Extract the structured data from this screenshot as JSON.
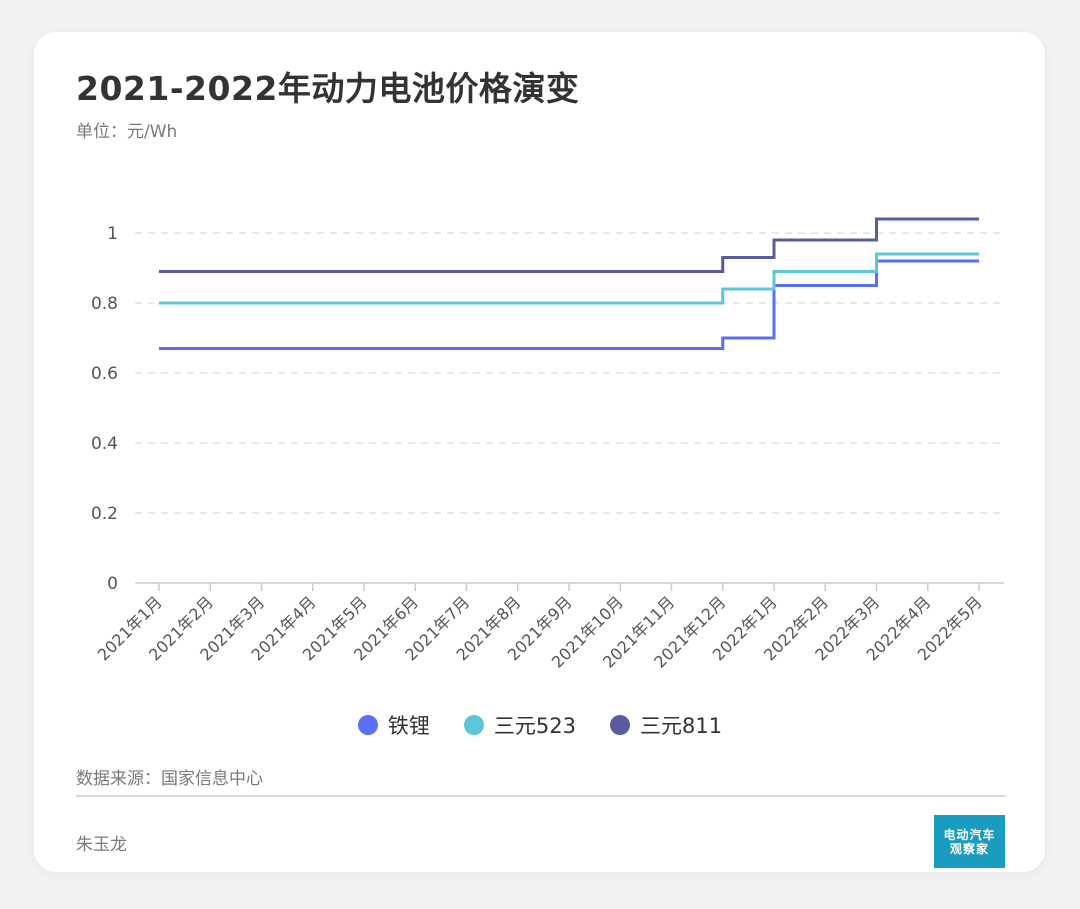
{
  "header": {
    "title": "2021-2022年动力电池价格演变",
    "unit": "单位：元/Wh"
  },
  "footer": {
    "source": "数据来源：国家信息中心",
    "author": "朱玉龙",
    "logo_line1": "电动汽车",
    "logo_line2": "观察家"
  },
  "legend": {
    "items": [
      {
        "label": "铁锂",
        "color": "#5b6ff5"
      },
      {
        "label": "三元523",
        "color": "#5ec6d8"
      },
      {
        "label": "三元811",
        "color": "#595ca0"
      }
    ]
  },
  "chart_data": {
    "type": "line",
    "step": "post",
    "categories": [
      "2021年1月",
      "2021年2月",
      "2021年3月",
      "2021年4月",
      "2021年5月",
      "2021年6月",
      "2021年7月",
      "2021年8月",
      "2021年9月",
      "2021年10月",
      "2021年11月",
      "2021年12月",
      "2022年1月",
      "2022年2月",
      "2022年3月",
      "2022年4月",
      "2022年5月"
    ],
    "series": [
      {
        "name": "铁锂",
        "color": "#5b6ff5",
        "values": [
          0.67,
          0.67,
          0.67,
          0.67,
          0.67,
          0.67,
          0.67,
          0.67,
          0.67,
          0.67,
          0.67,
          0.7,
          0.85,
          0.85,
          0.92,
          0.92,
          0.92
        ]
      },
      {
        "name": "三元523",
        "color": "#5ec6d8",
        "values": [
          0.8,
          0.8,
          0.8,
          0.8,
          0.8,
          0.8,
          0.8,
          0.8,
          0.8,
          0.8,
          0.8,
          0.84,
          0.89,
          0.89,
          0.94,
          0.94,
          0.94
        ]
      },
      {
        "name": "三元811",
        "color": "#595ca0",
        "values": [
          0.89,
          0.89,
          0.89,
          0.89,
          0.89,
          0.89,
          0.89,
          0.89,
          0.89,
          0.89,
          0.89,
          0.93,
          0.98,
          0.98,
          1.04,
          1.04,
          1.04
        ]
      }
    ],
    "yticks": [
      "0",
      "0.2",
      "0.4",
      "0.6",
      "0.8",
      "1"
    ],
    "ylim": [
      0,
      1.1
    ],
    "grid": true,
    "legend_position": "bottom"
  }
}
